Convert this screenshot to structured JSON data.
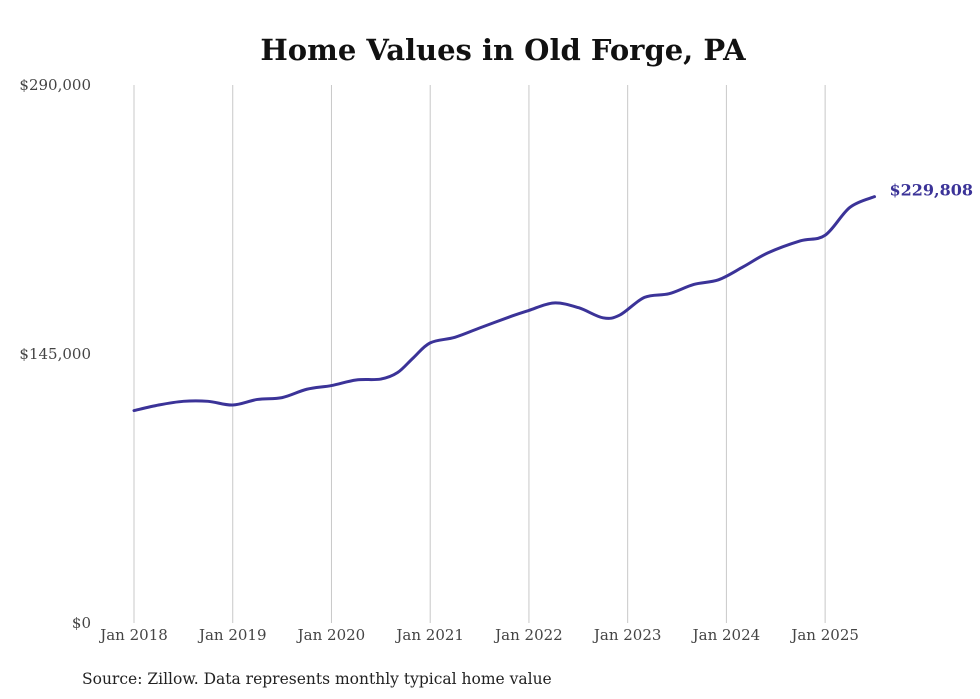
{
  "chart_data": {
    "type": "line",
    "title": "Home Values in Old Forge, PA",
    "xlabel": "",
    "ylabel": "",
    "ylim": [
      0,
      290000
    ],
    "y_ticks": [
      {
        "value": 0,
        "label": "$0"
      },
      {
        "value": 145000,
        "label": "$145,000"
      },
      {
        "value": 290000,
        "label": "$290,000"
      }
    ],
    "x_ticks": [
      {
        "value": 2018.0,
        "label": "Jan 2018"
      },
      {
        "value": 2019.0,
        "label": "Jan 2019"
      },
      {
        "value": 2020.0,
        "label": "Jan 2020"
      },
      {
        "value": 2021.0,
        "label": "Jan 2021"
      },
      {
        "value": 2022.0,
        "label": "Jan 2022"
      },
      {
        "value": 2023.0,
        "label": "Jan 2023"
      },
      {
        "value": 2024.0,
        "label": "Jan 2024"
      },
      {
        "value": 2025.0,
        "label": "Jan 2025"
      }
    ],
    "xlim": [
      2018.0,
      2025.5
    ],
    "series": [
      {
        "name": "Typical home value",
        "color": "#3b3398",
        "end_label": "$229,808",
        "points": [
          [
            2018.0,
            114500
          ],
          [
            2018.25,
            117500
          ],
          [
            2018.5,
            119500
          ],
          [
            2018.75,
            119500
          ],
          [
            2019.0,
            117500
          ],
          [
            2019.25,
            120500
          ],
          [
            2019.5,
            121500
          ],
          [
            2019.75,
            126000
          ],
          [
            2020.0,
            128000
          ],
          [
            2020.25,
            131000
          ],
          [
            2020.5,
            131500
          ],
          [
            2020.67,
            135000
          ],
          [
            2020.83,
            143000
          ],
          [
            2021.0,
            151000
          ],
          [
            2021.25,
            154000
          ],
          [
            2021.5,
            159000
          ],
          [
            2021.83,
            165500
          ],
          [
            2022.0,
            168500
          ],
          [
            2022.25,
            172500
          ],
          [
            2022.5,
            170000
          ],
          [
            2022.75,
            164500
          ],
          [
            2022.92,
            166000
          ],
          [
            2023.17,
            175500
          ],
          [
            2023.42,
            177500
          ],
          [
            2023.67,
            182500
          ],
          [
            2023.92,
            185000
          ],
          [
            2024.17,
            192000
          ],
          [
            2024.42,
            199500
          ],
          [
            2024.75,
            206000
          ],
          [
            2025.0,
            209000
          ],
          [
            2025.25,
            224000
          ],
          [
            2025.5,
            229808
          ]
        ]
      }
    ]
  },
  "source_note": "Source: Zillow. Data represents monthly typical home value"
}
